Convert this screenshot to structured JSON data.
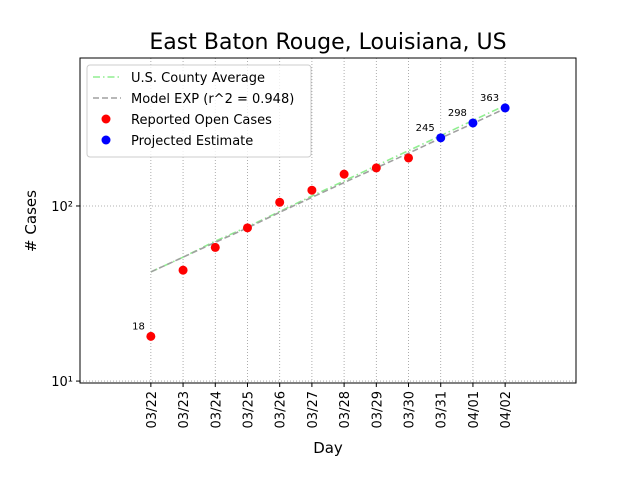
{
  "chart_data": {
    "type": "scatter",
    "title": "East Baton Rouge, Louisiana, US",
    "x_label": "Day",
    "y_label": "# Cases",
    "categories": [
      "03/22",
      "03/23",
      "03/24",
      "03/25",
      "03/26",
      "03/27",
      "03/28",
      "03/29",
      "03/30",
      "03/31",
      "04/01",
      "04/02"
    ],
    "xlim": [
      -2.2,
      13.2
    ],
    "ylim": [
      9.75,
      700
    ],
    "y_scale": "log",
    "yticks": [
      {
        "value": 10,
        "label": "10¹"
      },
      {
        "value": 100,
        "label": "10²"
      }
    ],
    "grid": true,
    "legend": "upper left",
    "series": [
      {
        "name": "U.S. County Average",
        "color": "#90ee90",
        "style": "dashdot",
        "values": [
          42,
          51,
          63,
          76,
          93,
          114,
          139,
          170,
          207,
          252,
          308,
          375
        ]
      },
      {
        "name": "Model EXP (r^2 = 0.948)",
        "color": "#a0a0a0",
        "style": "dashed",
        "values": [
          42,
          51,
          62,
          75,
          92,
          112,
          136,
          165,
          200,
          244,
          296,
          360
        ]
      },
      {
        "name": "Reported Open Cases",
        "color": "#ff0000",
        "style": "marker",
        "values": [
          18,
          43,
          58,
          75,
          105,
          123,
          152,
          165,
          188,
          null,
          null,
          null
        ],
        "value_labels": [
          "18",
          null,
          null,
          null,
          null,
          null,
          null,
          null,
          null,
          null,
          null,
          null
        ]
      },
      {
        "name": "Projected Estimate",
        "color": "#0000ff",
        "style": "marker",
        "values": [
          null,
          null,
          null,
          null,
          null,
          null,
          null,
          null,
          null,
          245,
          298,
          363
        ],
        "value_labels": [
          null,
          null,
          null,
          null,
          null,
          null,
          null,
          null,
          null,
          "245",
          "298",
          "363"
        ]
      }
    ]
  }
}
